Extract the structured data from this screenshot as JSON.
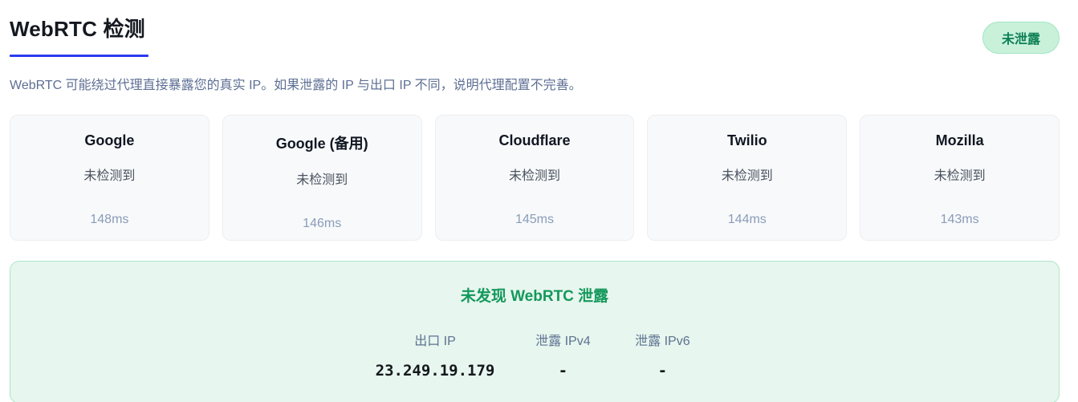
{
  "header": {
    "title": "WebRTC 检测",
    "badge": "未泄露",
    "description": "WebRTC 可能绕过代理直接暴露您的真实 IP。如果泄露的 IP 与出口 IP 不同，说明代理配置不完善。"
  },
  "cards": [
    {
      "name": "Google",
      "status": "未检测到",
      "latency": "148ms"
    },
    {
      "name": "Google (备用)",
      "status": "未检测到",
      "latency": "146ms"
    },
    {
      "name": "Cloudflare",
      "status": "未检测到",
      "latency": "145ms"
    },
    {
      "name": "Twilio",
      "status": "未检测到",
      "latency": "144ms"
    },
    {
      "name": "Mozilla",
      "status": "未检测到",
      "latency": "143ms"
    }
  ],
  "result": {
    "heading": "未发现 WebRTC 泄露",
    "columns": [
      {
        "label": "出口 IP",
        "value": "23.249.19.179"
      },
      {
        "label": "泄露 IPv4",
        "value": "-"
      },
      {
        "label": "泄露 IPv6",
        "value": "-"
      }
    ]
  },
  "colors": {
    "accent_blue": "#2b3af0",
    "badge_bg": "#c9f1da",
    "badge_text": "#0c7f55",
    "panel_bg": "#e7f6ee",
    "panel_border": "#aee5c9",
    "success_green": "#13985c"
  }
}
